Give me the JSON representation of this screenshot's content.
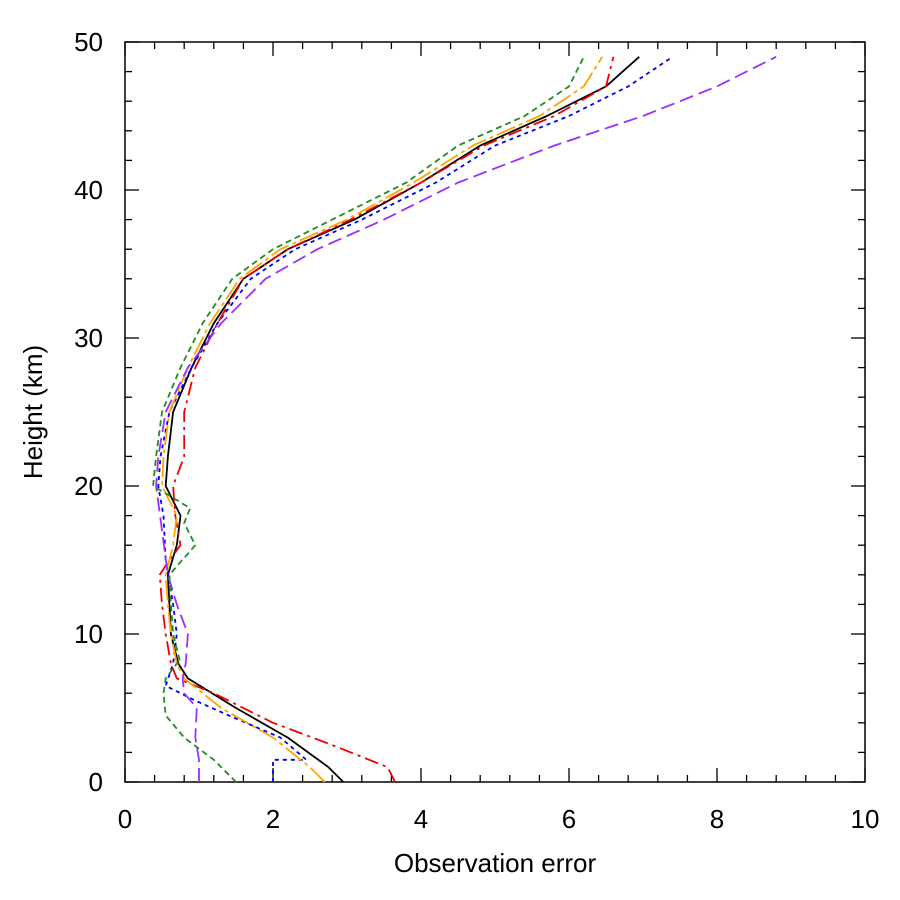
{
  "chart_data": {
    "type": "line",
    "title": "",
    "xlabel": "Observation error",
    "ylabel": "Height (km)",
    "xlim": [
      0,
      10
    ],
    "ylim": [
      0,
      50
    ],
    "xticks": [
      "0",
      "2",
      "4",
      "6",
      "8",
      "10"
    ],
    "yticks": [
      "0",
      "10",
      "20",
      "30",
      "40",
      "50"
    ],
    "grid": false,
    "legend": "none",
    "series": [
      {
        "color": "#000000",
        "dash": "none",
        "points": [
          [
            2.95,
            0
          ],
          [
            2.75,
            1
          ],
          [
            2.2,
            3
          ],
          [
            1.5,
            5
          ],
          [
            0.85,
            7
          ],
          [
            0.72,
            8
          ],
          [
            0.62,
            10
          ],
          [
            0.6,
            12
          ],
          [
            0.58,
            14
          ],
          [
            0.7,
            16
          ],
          [
            0.75,
            18
          ],
          [
            0.55,
            20
          ],
          [
            0.58,
            22
          ],
          [
            0.65,
            25
          ],
          [
            0.9,
            28
          ],
          [
            1.2,
            31
          ],
          [
            1.6,
            34
          ],
          [
            2.2,
            36
          ],
          [
            3.1,
            38
          ],
          [
            4.0,
            40.5
          ],
          [
            4.8,
            43
          ],
          [
            5.7,
            45
          ],
          [
            6.5,
            47
          ],
          [
            6.95,
            49
          ]
        ]
      },
      {
        "color": "#0000ee",
        "dash": "4,4",
        "points": [
          [
            2.0,
            0
          ],
          [
            2.0,
            1.5
          ],
          [
            2.45,
            1.5
          ],
          [
            2.1,
            3
          ],
          [
            1.4,
            4.5
          ],
          [
            0.95,
            5.5
          ],
          [
            0.55,
            6.5
          ],
          [
            0.65,
            8
          ],
          [
            0.7,
            10
          ],
          [
            0.65,
            12
          ],
          [
            0.55,
            15
          ],
          [
            0.52,
            18
          ],
          [
            0.45,
            20
          ],
          [
            0.48,
            22
          ],
          [
            0.6,
            25
          ],
          [
            0.9,
            28
          ],
          [
            1.25,
            31
          ],
          [
            1.7,
            34
          ],
          [
            2.3,
            36
          ],
          [
            3.2,
            38
          ],
          [
            4.2,
            40.5
          ],
          [
            5.0,
            43
          ],
          [
            6.0,
            45
          ],
          [
            6.8,
            47
          ],
          [
            7.4,
            49
          ]
        ]
      },
      {
        "color": "#ee0000",
        "dash": "14,5,3,5",
        "points": [
          [
            3.65,
            0
          ],
          [
            3.55,
            1
          ],
          [
            2.8,
            2.5
          ],
          [
            2.0,
            4
          ],
          [
            1.2,
            6
          ],
          [
            0.7,
            7
          ],
          [
            0.62,
            8
          ],
          [
            0.55,
            10
          ],
          [
            0.5,
            12
          ],
          [
            0.47,
            14
          ],
          [
            0.6,
            15
          ],
          [
            0.75,
            16
          ],
          [
            0.68,
            18
          ],
          [
            0.65,
            20
          ],
          [
            0.8,
            22
          ],
          [
            0.8,
            25
          ],
          [
            0.95,
            28
          ],
          [
            1.25,
            31
          ],
          [
            1.6,
            34
          ],
          [
            2.2,
            36
          ],
          [
            3.05,
            38
          ],
          [
            4.0,
            40.5
          ],
          [
            4.85,
            43
          ],
          [
            5.8,
            45
          ],
          [
            6.5,
            47
          ],
          [
            6.6,
            49
          ]
        ]
      },
      {
        "color": "#ffa500",
        "dash": "20,4,4,4",
        "points": [
          [
            2.7,
            0
          ],
          [
            2.5,
            1
          ],
          [
            2.0,
            3
          ],
          [
            1.3,
            5
          ],
          [
            0.8,
            7
          ],
          [
            0.7,
            8
          ],
          [
            0.62,
            10
          ],
          [
            0.58,
            12
          ],
          [
            0.55,
            14
          ],
          [
            0.65,
            16
          ],
          [
            0.7,
            18
          ],
          [
            0.5,
            20
          ],
          [
            0.52,
            22
          ],
          [
            0.6,
            25
          ],
          [
            0.85,
            28
          ],
          [
            1.15,
            31
          ],
          [
            1.55,
            34
          ],
          [
            2.1,
            36
          ],
          [
            3.0,
            38
          ],
          [
            3.9,
            40.5
          ],
          [
            4.7,
            43
          ],
          [
            5.6,
            45
          ],
          [
            6.2,
            47
          ],
          [
            6.45,
            49
          ]
        ]
      },
      {
        "color": "#9b30ff",
        "dash": "14,6",
        "points": [
          [
            1.0,
            0
          ],
          [
            1.0,
            1.5
          ],
          [
            0.95,
            3
          ],
          [
            0.97,
            5
          ],
          [
            0.8,
            6
          ],
          [
            0.78,
            7
          ],
          [
            0.82,
            8
          ],
          [
            0.85,
            10
          ],
          [
            0.7,
            12
          ],
          [
            0.58,
            14
          ],
          [
            0.5,
            17
          ],
          [
            0.42,
            20
          ],
          [
            0.45,
            22
          ],
          [
            0.55,
            25
          ],
          [
            0.85,
            28
          ],
          [
            1.3,
            31
          ],
          [
            1.9,
            34
          ],
          [
            2.6,
            36
          ],
          [
            3.5,
            38
          ],
          [
            4.5,
            40.5
          ],
          [
            5.8,
            43
          ],
          [
            7.0,
            45
          ],
          [
            8.0,
            47
          ],
          [
            8.8,
            49
          ]
        ]
      },
      {
        "color": "#228b22",
        "dash": "6,4",
        "points": [
          [
            1.5,
            0
          ],
          [
            1.2,
            1.5
          ],
          [
            0.8,
            3
          ],
          [
            0.55,
            4.5
          ],
          [
            0.52,
            6
          ],
          [
            0.55,
            7
          ],
          [
            0.7,
            8
          ],
          [
            0.75,
            8
          ],
          [
            0.65,
            10
          ],
          [
            0.62,
            12
          ],
          [
            0.6,
            14
          ],
          [
            0.95,
            16
          ],
          [
            0.8,
            17.5
          ],
          [
            0.88,
            18.5
          ],
          [
            0.55,
            19.5
          ],
          [
            0.38,
            20
          ],
          [
            0.42,
            22
          ],
          [
            0.5,
            25
          ],
          [
            0.75,
            28
          ],
          [
            1.05,
            31
          ],
          [
            1.45,
            34
          ],
          [
            2.0,
            36
          ],
          [
            2.8,
            38
          ],
          [
            3.8,
            40.5
          ],
          [
            4.5,
            43
          ],
          [
            5.4,
            45
          ],
          [
            6.0,
            47
          ],
          [
            6.2,
            49
          ]
        ]
      }
    ]
  }
}
